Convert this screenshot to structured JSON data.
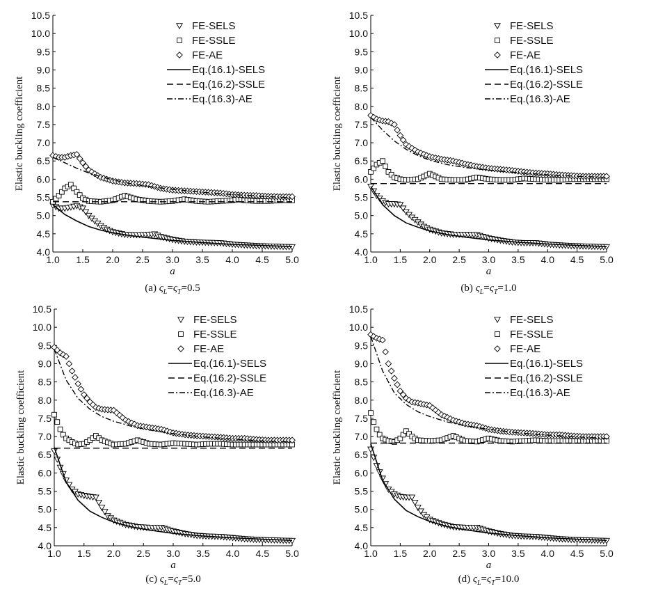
{
  "figure": {
    "ylabel": "Elastic buckling coefficient",
    "xlabel": "a",
    "legend": [
      "FE-SELS",
      "FE-SSLE",
      "FE-AE",
      "Eq.(16.1)-SELS",
      "Eq.(16.2)-SSLE",
      "Eq.(16.3)-AE"
    ],
    "x_tick_labels": [
      "1.0",
      "1.5",
      "2.0",
      "2.5",
      "3.0",
      "3.5",
      "4.0",
      "4.5",
      "5.0"
    ],
    "y_tick_labels": [
      "4.0",
      "4.5",
      "5.0",
      "5.5",
      "6.0",
      "6.5",
      "7.0",
      "7.5",
      "8.0",
      "8.5",
      "9.0",
      "9.5",
      "10.0",
      "10.5"
    ]
  },
  "chart_data": [
    {
      "type": "line",
      "caption_prefix": "(a) ",
      "caption_value": "0.5",
      "xlabel": "a",
      "ylabel": "Elastic buckling coefficient",
      "xlim": [
        1.0,
        5.0
      ],
      "ylim": [
        4.0,
        10.5
      ],
      "legend_position": "top-right",
      "series": [
        {
          "name": "FE-SELS",
          "marker": "triangle-down",
          "x": [
            1.0,
            1.1,
            1.2,
            1.3,
            1.4,
            1.5,
            1.6,
            1.7,
            1.8,
            1.9,
            2.0,
            2.2,
            2.4,
            2.6,
            2.7,
            2.8,
            3.0,
            3.2,
            3.4,
            3.6,
            3.8,
            4.0,
            4.2,
            4.4,
            4.6,
            4.8,
            5.0
          ],
          "y": [
            5.28,
            5.2,
            5.2,
            5.23,
            5.27,
            5.2,
            5.0,
            4.85,
            4.72,
            4.62,
            4.55,
            4.48,
            4.47,
            4.48,
            4.49,
            4.42,
            4.34,
            4.29,
            4.27,
            4.26,
            4.25,
            4.21,
            4.19,
            4.17,
            4.16,
            4.15,
            4.14
          ]
        },
        {
          "name": "FE-SSLE",
          "marker": "square",
          "x": [
            1.0,
            1.1,
            1.2,
            1.3,
            1.4,
            1.5,
            1.6,
            1.8,
            2.0,
            2.2,
            2.4,
            2.6,
            2.8,
            3.0,
            3.2,
            3.4,
            3.6,
            3.8,
            4.0,
            4.1,
            4.2,
            4.4,
            4.6,
            4.8,
            5.0
          ],
          "y": [
            5.38,
            5.55,
            5.75,
            5.85,
            5.65,
            5.48,
            5.4,
            5.38,
            5.42,
            5.55,
            5.45,
            5.4,
            5.38,
            5.4,
            5.45,
            5.4,
            5.38,
            5.4,
            5.42,
            5.45,
            5.42,
            5.4,
            5.4,
            5.42,
            5.42
          ]
        },
        {
          "name": "FE-AE",
          "marker": "diamond",
          "x": [
            1.0,
            1.1,
            1.2,
            1.3,
            1.4,
            1.5,
            1.6,
            1.8,
            2.0,
            2.2,
            2.4,
            2.6,
            2.8,
            3.0,
            3.2,
            3.4,
            3.6,
            3.8,
            4.0,
            4.2,
            4.4,
            4.6,
            4.8,
            5.0
          ],
          "y": [
            6.65,
            6.6,
            6.6,
            6.65,
            6.68,
            6.45,
            6.25,
            6.05,
            5.95,
            5.9,
            5.88,
            5.85,
            5.75,
            5.7,
            5.68,
            5.66,
            5.64,
            5.62,
            5.58,
            5.56,
            5.55,
            5.53,
            5.52,
            5.52
          ]
        },
        {
          "name": "Eq.(16.1)-SELS",
          "style": "solid",
          "x": [
            1.0,
            1.2,
            1.4,
            1.6,
            1.8,
            2.0,
            2.3,
            2.6,
            3.0,
            3.5,
            4.0,
            4.5,
            5.0
          ],
          "y": [
            5.3,
            5.03,
            4.85,
            4.7,
            4.6,
            4.53,
            4.45,
            4.39,
            4.32,
            4.26,
            4.21,
            4.18,
            4.15
          ]
        },
        {
          "name": "Eq.(16.2)-SSLE",
          "style": "dashed",
          "x": [
            1.0,
            5.0
          ],
          "y": [
            5.38,
            5.38
          ]
        },
        {
          "name": "Eq.(16.3)-AE",
          "style": "dash-dot",
          "x": [
            1.0,
            1.2,
            1.4,
            1.6,
            1.8,
            2.0,
            2.3,
            2.6,
            3.0,
            3.5,
            4.0,
            4.5,
            5.0
          ],
          "y": [
            6.6,
            6.45,
            6.3,
            6.17,
            6.07,
            5.98,
            5.88,
            5.8,
            5.72,
            5.64,
            5.58,
            5.53,
            5.49
          ]
        }
      ]
    },
    {
      "type": "line",
      "caption_prefix": "(b) ",
      "caption_value": "1.0",
      "xlabel": "a",
      "ylabel": "Elastic buckling coefficient",
      "xlim": [
        1.0,
        5.0
      ],
      "ylim": [
        4.0,
        10.5
      ],
      "legend_position": "top-right",
      "series": [
        {
          "name": "FE-SELS",
          "marker": "triangle-down",
          "x": [
            1.0,
            1.1,
            1.2,
            1.3,
            1.4,
            1.5,
            1.6,
            1.7,
            1.8,
            1.9,
            2.0,
            2.2,
            2.4,
            2.6,
            2.8,
            3.0,
            3.2,
            3.4,
            3.6,
            3.8,
            4.0,
            4.2,
            4.4,
            4.6,
            4.8,
            5.0
          ],
          "y": [
            5.8,
            5.55,
            5.4,
            5.32,
            5.32,
            5.3,
            5.1,
            4.95,
            4.82,
            4.7,
            4.62,
            4.52,
            4.48,
            4.48,
            4.47,
            4.38,
            4.32,
            4.27,
            4.25,
            4.25,
            4.21,
            4.19,
            4.17,
            4.16,
            4.15,
            4.14
          ]
        },
        {
          "name": "FE-SSLE",
          "marker": "square",
          "x": [
            1.0,
            1.1,
            1.2,
            1.3,
            1.4,
            1.5,
            1.6,
            1.8,
            2.0,
            2.2,
            2.4,
            2.6,
            2.8,
            3.0,
            3.2,
            3.4,
            3.6,
            3.8,
            4.0,
            4.2,
            4.4,
            4.6,
            4.8,
            5.0
          ],
          "y": [
            6.2,
            6.4,
            6.5,
            6.2,
            6.05,
            6.0,
            5.98,
            6.0,
            6.15,
            6.0,
            5.98,
            5.98,
            6.05,
            6.0,
            5.98,
            5.98,
            6.02,
            6.0,
            5.98,
            5.98,
            6.0,
            6.0,
            6.0,
            6.0
          ]
        },
        {
          "name": "FE-AE",
          "marker": "diamond",
          "x": [
            1.0,
            1.1,
            1.2,
            1.3,
            1.4,
            1.5,
            1.6,
            1.8,
            2.0,
            2.2,
            2.4,
            2.6,
            2.8,
            3.0,
            3.2,
            3.4,
            3.6,
            3.8,
            4.0,
            4.2,
            4.4,
            4.6,
            4.8,
            5.0
          ],
          "y": [
            7.75,
            7.65,
            7.6,
            7.58,
            7.5,
            7.2,
            6.95,
            6.75,
            6.62,
            6.55,
            6.5,
            6.42,
            6.35,
            6.3,
            6.27,
            6.24,
            6.2,
            6.17,
            6.15,
            6.12,
            6.1,
            6.08,
            6.08,
            6.08
          ]
        },
        {
          "name": "Eq.(16.1)-SELS",
          "style": "solid",
          "x": [
            1.0,
            1.2,
            1.4,
            1.6,
            1.8,
            2.0,
            2.3,
            2.6,
            3.0,
            3.5,
            4.0,
            4.5,
            5.0
          ],
          "y": [
            5.8,
            5.3,
            5.0,
            4.8,
            4.68,
            4.58,
            4.48,
            4.41,
            4.33,
            4.27,
            4.22,
            4.18,
            4.15
          ]
        },
        {
          "name": "Eq.(16.2)-SSLE",
          "style": "dashed",
          "x": [
            1.0,
            5.0
          ],
          "y": [
            5.88,
            5.88
          ]
        },
        {
          "name": "Eq.(16.3)-AE",
          "style": "dash-dot",
          "x": [
            1.0,
            1.2,
            1.4,
            1.6,
            1.8,
            2.0,
            2.3,
            2.6,
            3.0,
            3.5,
            4.0,
            4.5,
            5.0
          ],
          "y": [
            7.7,
            7.35,
            7.05,
            6.82,
            6.65,
            6.52,
            6.4,
            6.32,
            6.25,
            6.18,
            6.12,
            6.08,
            6.05
          ]
        }
      ]
    },
    {
      "type": "line",
      "caption_prefix": "(c) ",
      "caption_value": "5.0",
      "xlabel": "a",
      "ylabel": "Elastic buckling coefficient",
      "xlim": [
        1.0,
        5.0
      ],
      "ylim": [
        4.0,
        10.5
      ],
      "legend_position": "top-right",
      "series": [
        {
          "name": "FE-SELS",
          "marker": "triangle-down",
          "x": [
            1.0,
            1.1,
            1.2,
            1.3,
            1.4,
            1.5,
            1.6,
            1.7,
            1.8,
            1.9,
            2.0,
            2.2,
            2.4,
            2.6,
            2.8,
            3.0,
            3.2,
            3.4,
            3.6,
            3.8,
            4.0,
            4.2,
            4.4,
            4.6,
            4.8,
            5.0
          ],
          "y": [
            6.6,
            6.15,
            5.8,
            5.55,
            5.42,
            5.38,
            5.35,
            5.33,
            5.05,
            4.82,
            4.7,
            4.58,
            4.52,
            4.5,
            4.5,
            4.4,
            4.33,
            4.28,
            4.26,
            4.25,
            4.22,
            4.19,
            4.17,
            4.16,
            4.15,
            4.14
          ]
        },
        {
          "name": "FE-SSLE",
          "marker": "square",
          "x": [
            1.0,
            1.05,
            1.1,
            1.15,
            1.2,
            1.3,
            1.4,
            1.5,
            1.6,
            1.7,
            1.8,
            2.0,
            2.2,
            2.4,
            2.6,
            2.8,
            3.0,
            3.2,
            3.4,
            3.6,
            3.8,
            4.0,
            4.2,
            4.4,
            4.6,
            4.8,
            5.0
          ],
          "y": [
            7.6,
            7.4,
            7.2,
            7.05,
            6.95,
            6.85,
            6.78,
            6.8,
            6.9,
            7.02,
            6.9,
            6.78,
            6.8,
            6.9,
            6.8,
            6.78,
            6.82,
            6.8,
            6.78,
            6.8,
            6.8,
            6.78,
            6.78,
            6.78,
            6.78,
            6.78,
            6.78
          ]
        },
        {
          "name": "FE-AE",
          "marker": "diamond",
          "x": [
            1.0,
            1.1,
            1.2,
            1.3,
            1.4,
            1.5,
            1.6,
            1.7,
            1.8,
            2.0,
            2.2,
            2.4,
            2.6,
            2.8,
            3.0,
            3.2,
            3.4,
            3.6,
            3.8,
            4.0,
            4.2,
            4.4,
            4.6,
            4.8,
            5.0
          ],
          "y": [
            9.45,
            9.3,
            9.2,
            8.8,
            8.45,
            8.15,
            7.95,
            7.8,
            7.75,
            7.72,
            7.45,
            7.3,
            7.25,
            7.2,
            7.1,
            7.05,
            7.02,
            7.0,
            6.98,
            6.95,
            6.95,
            6.92,
            6.9,
            6.9,
            6.9
          ]
        },
        {
          "name": "Eq.(16.1)-SELS",
          "style": "solid",
          "x": [
            1.0,
            1.2,
            1.4,
            1.6,
            1.8,
            2.0,
            2.3,
            2.6,
            3.0,
            3.5,
            4.0,
            4.5,
            5.0
          ],
          "y": [
            6.7,
            5.75,
            5.25,
            4.95,
            4.78,
            4.65,
            4.52,
            4.43,
            4.34,
            4.27,
            4.22,
            4.18,
            4.15
          ]
        },
        {
          "name": "Eq.(16.2)-SSLE",
          "style": "dashed",
          "x": [
            1.0,
            5.0
          ],
          "y": [
            6.68,
            6.68
          ]
        },
        {
          "name": "Eq.(16.3)-AE",
          "style": "dash-dot",
          "x": [
            1.0,
            1.2,
            1.4,
            1.6,
            1.8,
            2.0,
            2.3,
            2.6,
            3.0,
            3.5,
            4.0,
            4.5,
            5.0
          ],
          "y": [
            9.4,
            8.55,
            8.05,
            7.75,
            7.55,
            7.42,
            7.28,
            7.18,
            7.08,
            6.99,
            6.93,
            6.88,
            6.85
          ]
        }
      ]
    },
    {
      "type": "line",
      "caption_prefix": "(d) ",
      "caption_value": "10.0",
      "xlabel": "a",
      "ylabel": "Elastic buckling coefficient",
      "xlim": [
        1.0,
        5.0
      ],
      "ylim": [
        4.0,
        10.5
      ],
      "legend_position": "top-right",
      "series": [
        {
          "name": "FE-SELS",
          "marker": "triangle-down",
          "x": [
            1.0,
            1.1,
            1.2,
            1.3,
            1.4,
            1.5,
            1.6,
            1.7,
            1.8,
            1.9,
            2.0,
            2.2,
            2.4,
            2.6,
            2.8,
            3.0,
            3.2,
            3.4,
            3.6,
            3.8,
            4.0,
            4.2,
            4.4,
            4.6,
            4.8,
            5.0
          ],
          "y": [
            6.65,
            6.2,
            5.85,
            5.55,
            5.42,
            5.35,
            5.33,
            5.33,
            5.05,
            4.85,
            4.72,
            4.6,
            4.52,
            4.5,
            4.5,
            4.4,
            4.33,
            4.28,
            4.26,
            4.25,
            4.22,
            4.19,
            4.17,
            4.16,
            4.15,
            4.14
          ]
        },
        {
          "name": "FE-SSLE",
          "marker": "square",
          "x": [
            1.0,
            1.05,
            1.1,
            1.15,
            1.2,
            1.3,
            1.4,
            1.5,
            1.6,
            1.7,
            1.8,
            2.0,
            2.2,
            2.4,
            2.6,
            2.8,
            3.0,
            3.2,
            3.4,
            3.6,
            3.8,
            4.0,
            4.2,
            4.4,
            4.6,
            4.8,
            5.0
          ],
          "y": [
            7.65,
            7.4,
            7.2,
            7.05,
            6.95,
            6.88,
            6.85,
            6.95,
            7.15,
            7.0,
            6.9,
            6.88,
            6.9,
            7.02,
            6.88,
            6.86,
            6.95,
            6.88,
            6.86,
            6.88,
            6.9,
            6.88,
            6.88,
            6.88,
            6.88,
            6.88,
            6.88
          ]
        },
        {
          "name": "FE-AE",
          "marker": "diamond",
          "x": [
            1.0,
            1.1,
            1.2,
            1.3,
            1.4,
            1.5,
            1.6,
            1.7,
            1.8,
            2.0,
            2.2,
            2.4,
            2.6,
            2.8,
            3.0,
            3.2,
            3.4,
            3.6,
            3.8,
            4.0,
            4.2,
            4.4,
            4.6,
            4.8,
            5.0
          ],
          "y": [
            9.8,
            9.7,
            9.65,
            9.0,
            8.6,
            8.25,
            8.05,
            7.95,
            7.92,
            7.85,
            7.6,
            7.45,
            7.35,
            7.3,
            7.2,
            7.15,
            7.12,
            7.1,
            7.08,
            7.05,
            7.05,
            7.02,
            7.0,
            7.0,
            7.0
          ]
        },
        {
          "name": "Eq.(16.1)-SELS",
          "style": "solid",
          "x": [
            1.0,
            1.2,
            1.4,
            1.6,
            1.8,
            2.0,
            2.3,
            2.6,
            3.0,
            3.5,
            4.0,
            4.5,
            5.0
          ],
          "y": [
            6.8,
            5.8,
            5.28,
            4.97,
            4.8,
            4.67,
            4.53,
            4.44,
            4.35,
            4.28,
            4.22,
            4.18,
            4.15
          ]
        },
        {
          "name": "Eq.(16.2)-SSLE",
          "style": "dashed",
          "x": [
            1.0,
            5.0
          ],
          "y": [
            6.82,
            6.82
          ]
        },
        {
          "name": "Eq.(16.3)-AE",
          "style": "dash-dot",
          "x": [
            1.0,
            1.2,
            1.4,
            1.6,
            1.8,
            2.0,
            2.3,
            2.6,
            3.0,
            3.5,
            4.0,
            4.5,
            5.0
          ],
          "y": [
            9.75,
            8.8,
            8.2,
            7.88,
            7.68,
            7.55,
            7.4,
            7.3,
            7.2,
            7.1,
            7.04,
            6.99,
            6.95
          ]
        }
      ]
    }
  ]
}
